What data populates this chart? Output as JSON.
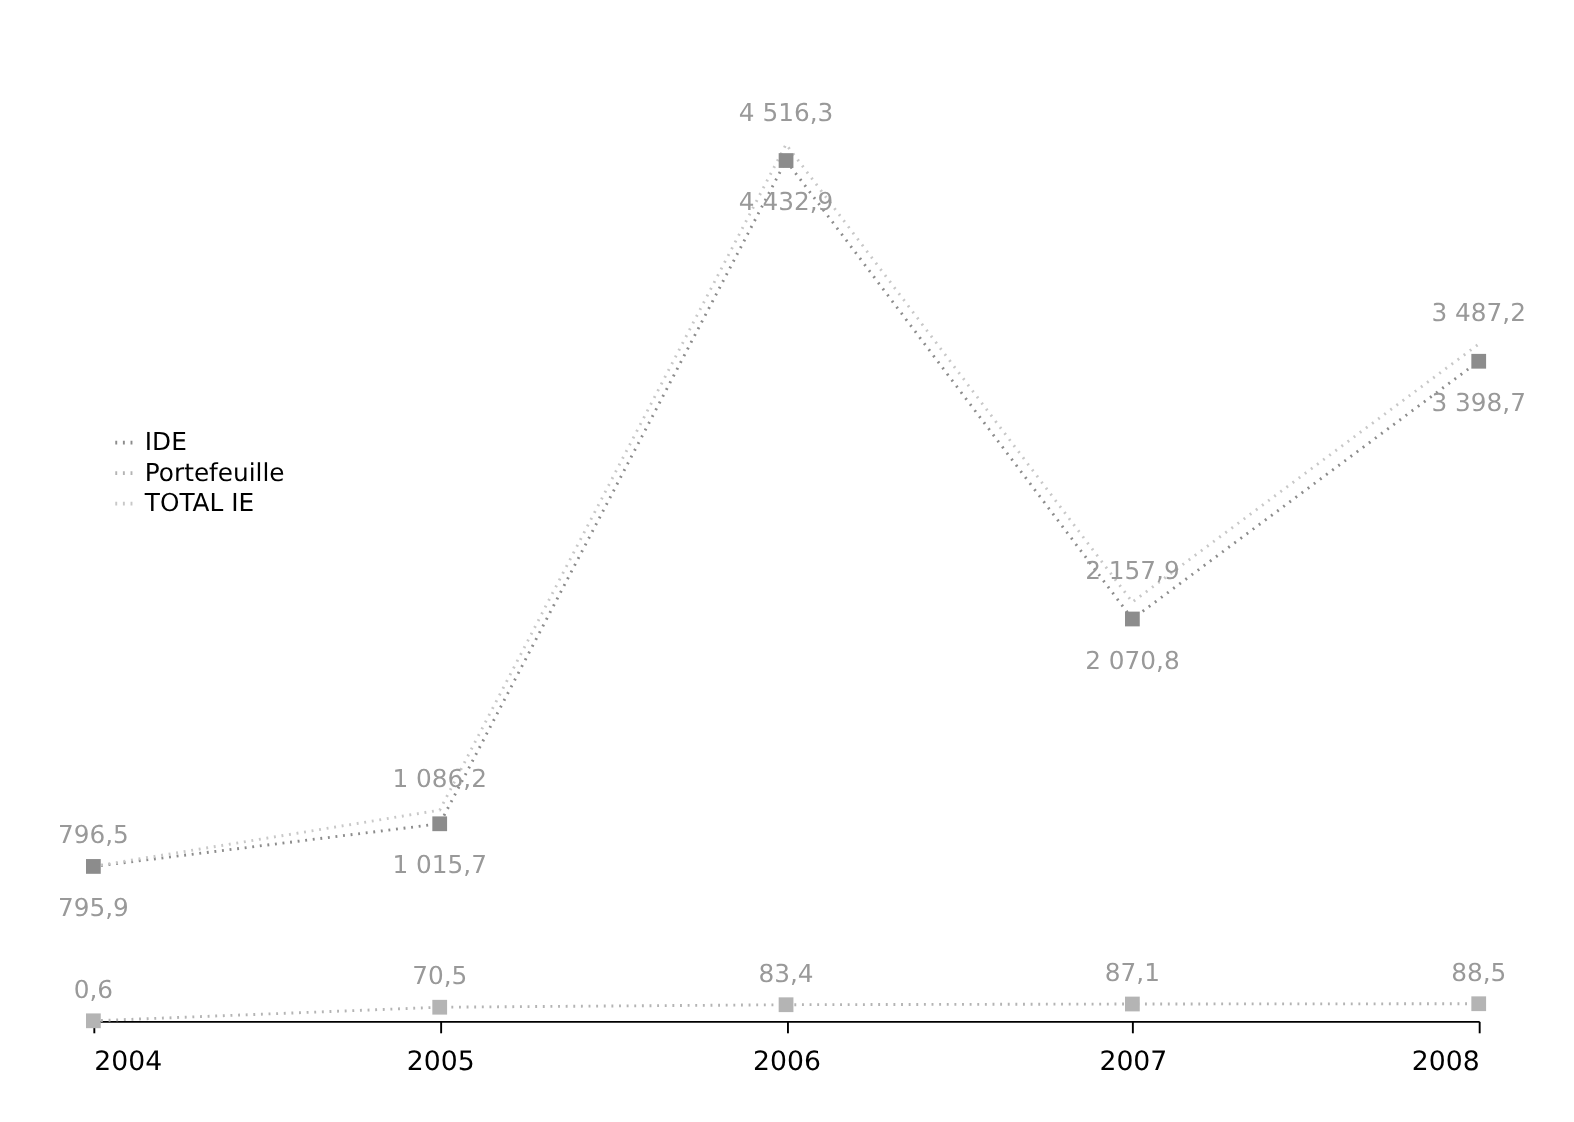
{
  "chart_data": {
    "type": "line",
    "categories": [
      "2004",
      "2005",
      "2006",
      "2007",
      "2008"
    ],
    "series": [
      {
        "name": "IDE",
        "color": "#8c8c8c",
        "marker": "square",
        "values": [
          795.9,
          1015.7,
          4432.9,
          2070.8,
          3398.7
        ],
        "value_labels": [
          "795,9",
          "1 015,7",
          "4 432,9",
          "2 070,8",
          "3 398,7"
        ]
      },
      {
        "name": "Portefeuille",
        "color": "#b4b4b4",
        "marker": "square",
        "values": [
          0.6,
          70.5,
          83.4,
          87.1,
          88.5
        ],
        "value_labels": [
          "0,6",
          "70,5",
          "83,4",
          "87,1",
          "88,5"
        ]
      },
      {
        "name": "TOTAL IE",
        "color": "#c8c8c8",
        "marker": "none",
        "values": [
          796.5,
          1086.2,
          4516.3,
          2157.9,
          3487.2
        ],
        "value_labels": [
          "796,5",
          "1 086,2",
          "4 516,3",
          "2 157,9",
          "3 487,2"
        ]
      }
    ],
    "tick_labels": "x",
    "grid": false,
    "legend": "left",
    "line_style": "dotted"
  }
}
